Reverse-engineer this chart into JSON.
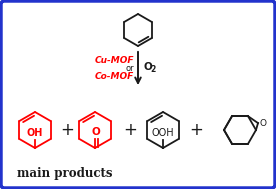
{
  "border_color": "#2233cc",
  "border_lw": 3.0,
  "background_color": "#ffffff",
  "red_color": "#ff0000",
  "black_color": "#1a1a1a",
  "title_text": "main products",
  "title_fontsize": 8.5,
  "arrow_label_cu": "Cu-MOF",
  "arrow_label_or": "or",
  "arrow_label_co": "Co-MOF",
  "mol_oh_label": "OH",
  "mol_o_label": "O",
  "mol_ooh_label": "OOH",
  "mol_epoxide_label": "O",
  "fig_w": 2.76,
  "fig_h": 1.89,
  "dpi": 100
}
